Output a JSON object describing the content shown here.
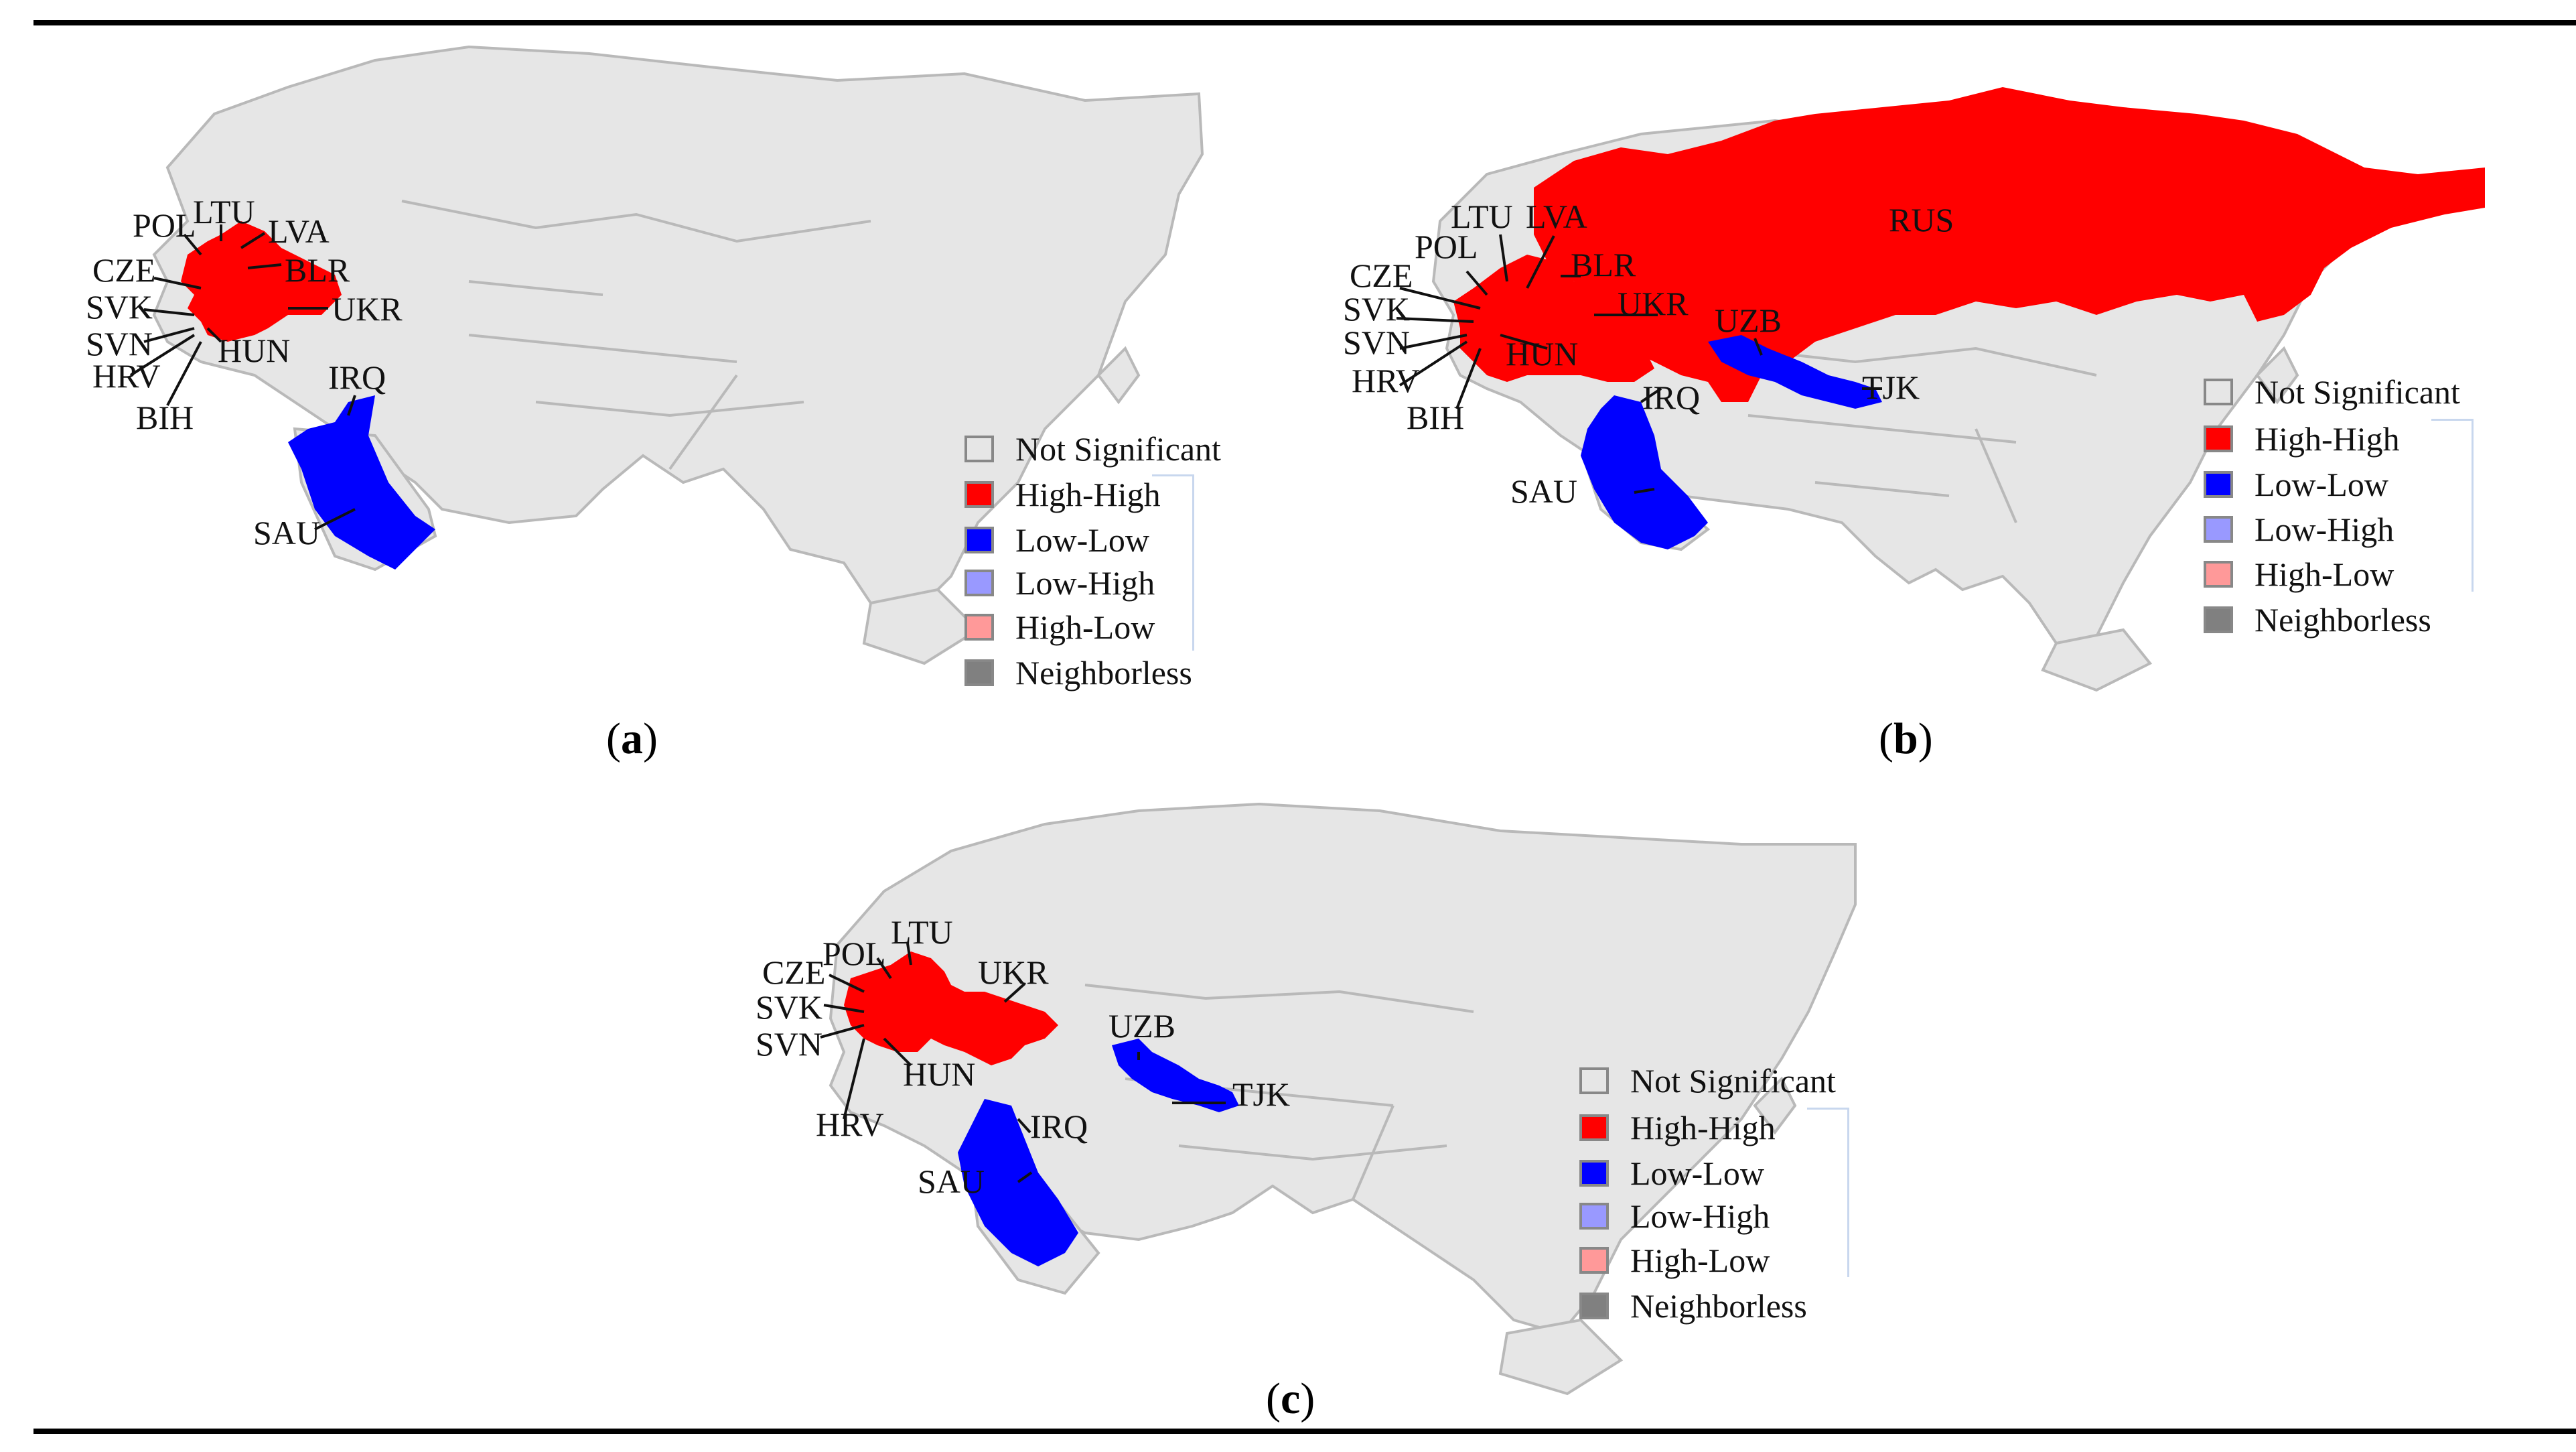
{
  "colors": {
    "not_significant": "#e6e6e6",
    "high_high": "#ff0000",
    "low_low": "#0000ff",
    "low_high": "#9999ff",
    "high_low": "#ff9999",
    "neighborless": "#808080"
  },
  "legend": [
    {
      "label": "Not Significant",
      "color_key": "not_significant"
    },
    {
      "label": "High-High",
      "color_key": "high_high"
    },
    {
      "label": "Low-Low",
      "color_key": "low_low"
    },
    {
      "label": "Low-High",
      "color_key": "low_high"
    },
    {
      "label": "High-Low",
      "color_key": "high_low"
    },
    {
      "label": "Neighborless",
      "color_key": "neighborless"
    }
  ],
  "panels": {
    "a": {
      "caption_letter": "a",
      "high_high": [
        "POL",
        "LTU",
        "LVA",
        "CZE",
        "BLR",
        "SVK",
        "UKR",
        "SVN",
        "HUN",
        "HRV",
        "BIH"
      ],
      "low_low": [
        "IRQ",
        "SAU"
      ]
    },
    "b": {
      "caption_letter": "b",
      "high_high": [
        "RUS",
        "LTU",
        "LVA",
        "POL",
        "CZE",
        "BLR",
        "SVK",
        "UKR",
        "SVN",
        "HUN",
        "HRV",
        "BIH"
      ],
      "low_low": [
        "UZB",
        "TJK",
        "IRQ",
        "SAU"
      ]
    },
    "c": {
      "caption_letter": "c",
      "high_high": [
        "LTU",
        "POL",
        "CZE",
        "UKR",
        "SVK",
        "SVN",
        "HUN",
        "HRV"
      ],
      "low_low": [
        "UZB",
        "TJK",
        "IRQ",
        "SAU"
      ]
    }
  }
}
